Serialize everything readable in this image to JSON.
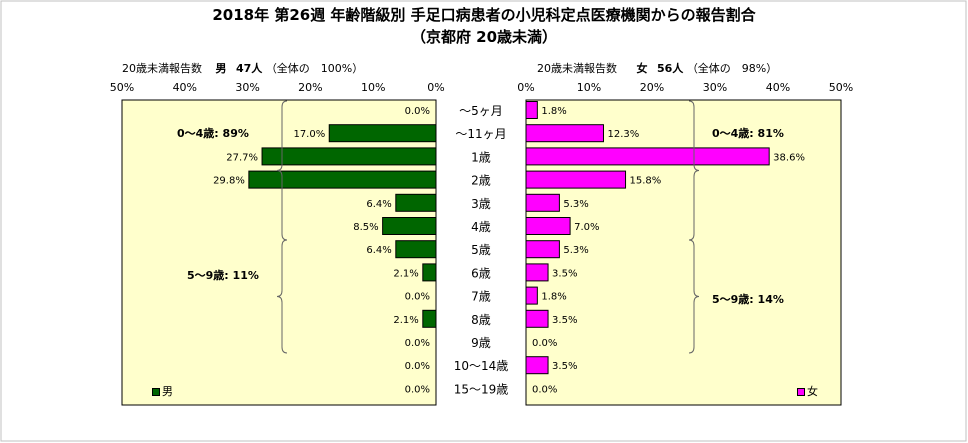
{
  "title_line1": "2018年 第26週 年齢階級別 手足口病患者の小児科定点医療機関からの報告割合",
  "title_line2": "（京都府 20歳未満）",
  "male_header": {
    "label": "20歳未満報告数",
    "sex": "男",
    "count": "47人",
    "total": "（全体の　100%）"
  },
  "female_header": {
    "label": "20歳未満報告数",
    "sex": "女",
    "count": "56人",
    "total": "（全体の　98%）"
  },
  "brackets": {
    "male_0_4": "0～4歳: 89%",
    "male_5_9": "5～9歳: 11%",
    "female_0_4": "0～4歳: 81%",
    "female_5_9": "5～9歳: 14%"
  },
  "legend": {
    "male": "男",
    "female": "女"
  },
  "colors": {
    "male": "#006600",
    "female": "#ff00ff",
    "plot_bg": "#ffffcc"
  },
  "chart_data": {
    "type": "bar",
    "orientation": "horizontal-butterfly",
    "categories": [
      "～5ヶ月",
      "～11ヶ月",
      "1歳",
      "2歳",
      "3歳",
      "4歳",
      "5歳",
      "6歳",
      "7歳",
      "8歳",
      "9歳",
      "10～14歳",
      "15～19歳"
    ],
    "series": [
      {
        "name": "男",
        "values": [
          0.0,
          17.0,
          27.7,
          29.8,
          6.4,
          8.5,
          6.4,
          2.1,
          0.0,
          2.1,
          0.0,
          0.0,
          0.0
        ],
        "labels": [
          "0.0%",
          "17.0%",
          "27.7%",
          "29.8%",
          "6.4%",
          "8.5%",
          "6.4%",
          "2.1%",
          "0.0%",
          "2.1%",
          "0.0%",
          "0.0%",
          "0.0%"
        ]
      },
      {
        "name": "女",
        "values": [
          1.8,
          12.3,
          38.6,
          15.8,
          5.3,
          7.0,
          5.3,
          3.5,
          1.8,
          3.5,
          0.0,
          3.5,
          0.0
        ],
        "labels": [
          "1.8%",
          "12.3%",
          "38.6%",
          "15.8%",
          "5.3%",
          "7.0%",
          "5.3%",
          "3.5%",
          "1.8%",
          "3.5%",
          "0.0%",
          "3.5%",
          "0.0%"
        ]
      }
    ],
    "male_ticks": [
      "50%",
      "40%",
      "30%",
      "20%",
      "10%",
      "0%"
    ],
    "female_ticks": [
      "0%",
      "10%",
      "20%",
      "30%",
      "40%",
      "50%"
    ],
    "xlim": [
      0,
      50
    ]
  }
}
